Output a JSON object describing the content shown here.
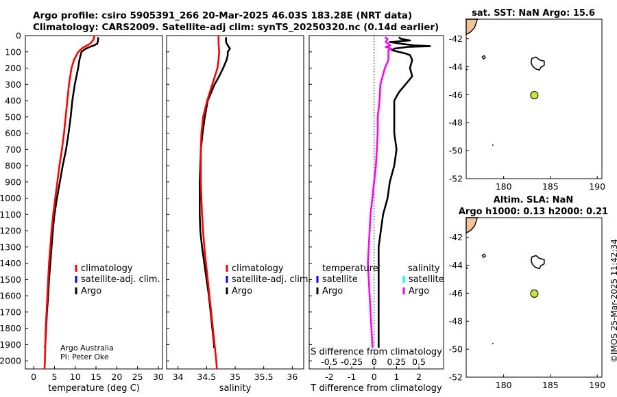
{
  "header": {
    "line1": "Argo profile: csiro 5905391_266 20-Mar-2025 46.03S 183.28E (NRT data)",
    "line2": "Climatology: CARS2009. Satellite-adj clim: synTS_20250320.nc (0.14d earlier)"
  },
  "credits": {
    "line1": "Argo Australia",
    "line2": "PI: Peter Oke"
  },
  "timestamp": "©IMOS 25-Mar-2025 11:42:34",
  "colors": {
    "argo": "#000000",
    "climatology": "#ff0000",
    "satellite": "#0000ff",
    "salinity_diff": "#ff00ff",
    "salinity_sat": "#00ffff",
    "float": "#c8e632",
    "land": "#f2c49b"
  },
  "chart_data": [
    {
      "type": "line",
      "name": "temperature",
      "xlabel": "temperature (deg C)",
      "xlim": [
        -2,
        31
      ],
      "ylim": [
        0,
        2050
      ],
      "y_reversed": true,
      "xticks": [
        0,
        5,
        10,
        15,
        20,
        25,
        30
      ],
      "yticks": [
        0,
        100,
        200,
        300,
        400,
        500,
        600,
        700,
        800,
        900,
        1000,
        1100,
        1200,
        1300,
        1400,
        1500,
        1600,
        1700,
        1800,
        1900,
        2000
      ],
      "legend": [
        "climatology",
        "satellite-adj. clim.",
        "Argo"
      ],
      "series": [
        {
          "name": "Argo",
          "color": "#000000",
          "depth": [
            10,
            30,
            50,
            60,
            70,
            80,
            90,
            100,
            150,
            200,
            300,
            400,
            500,
            600,
            700,
            800,
            900,
            1000,
            1100,
            1200,
            1300,
            1400,
            1500,
            1600,
            1700,
            1800,
            1900,
            1920
          ],
          "values": [
            15.5,
            15.5,
            15.3,
            14.5,
            13.5,
            12.6,
            12.0,
            11.5,
            11.0,
            10.7,
            9.9,
            9.3,
            8.9,
            8.4,
            7.8,
            7.0,
            6.3,
            5.6,
            5.0,
            4.6,
            4.3,
            4.0,
            3.7,
            3.5,
            3.2,
            3.0,
            2.8,
            2.7
          ]
        },
        {
          "name": "climatology",
          "color": "#ff0000",
          "depth": [
            0,
            25,
            50,
            75,
            100,
            150,
            200,
            300,
            400,
            500,
            600,
            700,
            800,
            900,
            1000,
            1100,
            1200,
            1300,
            1400,
            1500,
            1600,
            1700,
            1800,
            1900,
            2000,
            2050
          ],
          "values": [
            14.6,
            14.4,
            13.6,
            11.8,
            10.7,
            9.7,
            9.1,
            8.5,
            8.1,
            7.7,
            7.3,
            6.8,
            6.2,
            5.7,
            5.2,
            4.7,
            4.3,
            4.0,
            3.7,
            3.5,
            3.3,
            3.1,
            2.9,
            2.8,
            2.7,
            2.6
          ]
        }
      ]
    },
    {
      "type": "line",
      "name": "salinity",
      "xlabel": "salinity",
      "xlim": [
        33.8,
        36.2
      ],
      "ylim": [
        0,
        2050
      ],
      "y_reversed": true,
      "xticks": [
        34,
        34.5,
        35,
        35.5,
        36
      ],
      "legend": [
        "climatology",
        "satellite-adj. clim.",
        "Argo"
      ],
      "series": [
        {
          "name": "Argo",
          "color": "#000000",
          "depth": [
            10,
            40,
            60,
            80,
            100,
            120,
            150,
            200,
            250,
            300,
            350,
            400,
            500,
            600,
            700,
            800,
            900,
            1000,
            1100,
            1200,
            1300,
            1400,
            1500,
            1600,
            1700,
            1800,
            1900,
            1920
          ],
          "values": [
            34.84,
            34.84,
            34.87,
            34.91,
            34.87,
            34.87,
            34.85,
            34.79,
            34.72,
            34.64,
            34.58,
            34.52,
            34.47,
            34.43,
            34.4,
            34.39,
            34.38,
            34.38,
            34.38,
            34.39,
            34.42,
            34.46,
            34.5,
            34.54,
            34.57,
            34.6,
            34.63,
            34.63
          ]
        },
        {
          "name": "climatology",
          "color": "#ff0000",
          "depth": [
            0,
            50,
            100,
            150,
            200,
            300,
            400,
            500,
            600,
            700,
            800,
            900,
            1000,
            1100,
            1200,
            1300,
            1400,
            1500,
            1600,
            1700,
            1800,
            1900,
            2000,
            2050
          ],
          "values": [
            34.71,
            34.71,
            34.72,
            34.71,
            34.69,
            34.6,
            34.51,
            34.44,
            34.41,
            34.4,
            34.4,
            34.4,
            34.41,
            34.42,
            34.44,
            34.46,
            34.49,
            34.52,
            34.55,
            34.58,
            34.61,
            34.64,
            34.67,
            34.68
          ]
        }
      ]
    },
    {
      "type": "line",
      "name": "difference",
      "xlabel": "T difference from climatology",
      "xlabel_top": "S difference from climatology",
      "xlim": [
        -2.9,
        3.1
      ],
      "ylim": [
        0,
        2050
      ],
      "y_reversed": true,
      "xticks": [
        -2,
        -1,
        0,
        1,
        2
      ],
      "xticks_S": [
        "-0.5",
        "-0.25",
        "0",
        "0.25",
        "0.5"
      ],
      "legend_T": {
        "title": "temperature",
        "items": [
          "satellite",
          "Argo"
        ]
      },
      "legend_S": {
        "title": "salinity",
        "items": [
          "satellite",
          "Argo"
        ]
      },
      "series": [
        {
          "name": "T Argo - clim",
          "color": "#000000",
          "depth": [
            10,
            20,
            30,
            40,
            50,
            60,
            65,
            70,
            80,
            90,
            100,
            110,
            120,
            150,
            200,
            250,
            300,
            350,
            400,
            500,
            600,
            700,
            800,
            900,
            1000,
            1100,
            1200,
            1300,
            1400,
            1500,
            1600,
            1700,
            1800,
            1900,
            1920
          ],
          "values": [
            1.1,
            1.2,
            1.6,
            0.7,
            1.2,
            1.8,
            2.5,
            1.5,
            0.9,
            0.8,
            1.1,
            1.4,
            1.6,
            1.7,
            1.6,
            1.7,
            1.4,
            1.1,
            0.9,
            0.9,
            0.9,
            1.0,
            0.9,
            0.7,
            0.6,
            0.4,
            0.3,
            0.2,
            0.2,
            0.2,
            0.2,
            0.2,
            0.2,
            0.2,
            0.2
          ]
        },
        {
          "name": "S Argo - clim",
          "color": "#ff00ff",
          "depth": [
            10,
            20,
            30,
            40,
            50,
            60,
            70,
            80,
            90,
            100,
            150,
            200,
            300,
            400,
            500,
            600,
            700,
            800,
            900,
            1000,
            1100,
            1200,
            1300,
            1400,
            1500,
            1600,
            1700,
            1800,
            1900,
            1920
          ],
          "values": [
            0.12,
            0.15,
            0.14,
            0.13,
            0.16,
            0.18,
            0.13,
            0.19,
            0.16,
            0.16,
            0.16,
            0.12,
            0.07,
            0.06,
            0.04,
            0.04,
            0.03,
            0.02,
            0.0,
            -0.02,
            -0.04,
            -0.05,
            -0.06,
            -0.07,
            -0.06,
            -0.05,
            -0.04,
            -0.03,
            -0.02,
            -0.02
          ]
        }
      ]
    },
    {
      "type": "scatter",
      "name": "map-sst",
      "title": "sat. SST: NaN Argo: 15.6",
      "xlim": [
        176,
        190.5
      ],
      "ylim": [
        -52,
        -40.6
      ],
      "xticks": [
        180,
        185,
        190
      ],
      "yticks": [
        -52,
        -50,
        -48,
        -46,
        -44,
        -42
      ],
      "points": [
        {
          "lon": 183.28,
          "lat": -46.03,
          "label": "Argo float"
        }
      ]
    },
    {
      "type": "scatter",
      "name": "map-sla",
      "title_line1": "Altim. SLA: NaN",
      "title_line2": "Argo h1000: 0.13 h2000: 0.21",
      "xlim": [
        176,
        190.5
      ],
      "ylim": [
        -52,
        -40.6
      ],
      "xticks": [
        180,
        185,
        190
      ],
      "yticks": [
        -52,
        -50,
        -48,
        -46,
        -44,
        -42
      ],
      "points": [
        {
          "lon": 183.28,
          "lat": -46.03,
          "label": "Argo float"
        }
      ]
    }
  ]
}
